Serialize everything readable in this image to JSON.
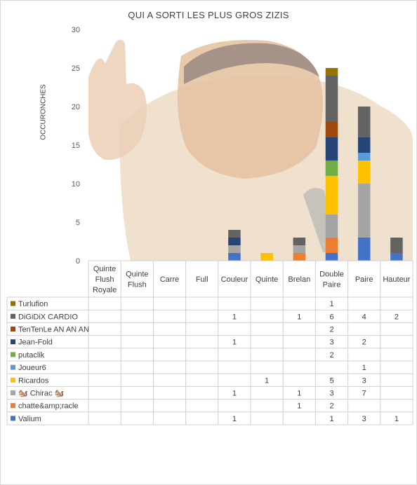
{
  "chart_data": {
    "type": "bar",
    "stacked": true,
    "title": "QUI A SORTI LES PLUS GROS ZIZIS",
    "ylabel": "OCCURONCHES",
    "ylim": [
      0,
      30
    ],
    "yticks": [
      0,
      5,
      10,
      15,
      20,
      25,
      30
    ],
    "grid": false,
    "legend": "data-table",
    "background": "photo-of-laughing-man",
    "categories": [
      [
        "Quinte",
        "Flush",
        "Royale"
      ],
      [
        "Quinte",
        "Flush"
      ],
      [
        "Carre"
      ],
      [
        "Full"
      ],
      [
        "Couleur"
      ],
      [
        "Quinte"
      ],
      [
        "Brelan"
      ],
      [
        "Double",
        "Paire"
      ],
      [
        "Paire"
      ],
      [
        "Hauteur"
      ]
    ],
    "series": [
      {
        "name": "Valium",
        "color": "#4472c4",
        "values": [
          null,
          null,
          null,
          null,
          1,
          null,
          null,
          1,
          3,
          1
        ]
      },
      {
        "name": "chatte&amp;racle",
        "color": "#ed7d31",
        "values": [
          null,
          null,
          null,
          null,
          null,
          null,
          1,
          2,
          null,
          null
        ]
      },
      {
        "name": "🐿️ Chirac 🐿️",
        "color": "#a5a5a5",
        "values": [
          null,
          null,
          null,
          null,
          1,
          null,
          1,
          3,
          7,
          null
        ]
      },
      {
        "name": "Ricardos",
        "color": "#ffc000",
        "values": [
          null,
          null,
          null,
          null,
          null,
          1,
          null,
          5,
          3,
          null
        ]
      },
      {
        "name": "Joueur6",
        "color": "#5b9bd5",
        "values": [
          null,
          null,
          null,
          null,
          null,
          null,
          null,
          null,
          1,
          null
        ]
      },
      {
        "name": "putaclik",
        "color": "#70ad47",
        "values": [
          null,
          null,
          null,
          null,
          null,
          null,
          null,
          2,
          null,
          null
        ]
      },
      {
        "name": "Jean-Fold",
        "color": "#264478",
        "values": [
          null,
          null,
          null,
          null,
          1,
          null,
          null,
          3,
          2,
          null
        ]
      },
      {
        "name": "TenTenLe AN AN AN",
        "color": "#9e480e",
        "values": [
          null,
          null,
          null,
          null,
          null,
          null,
          null,
          2,
          null,
          null
        ]
      },
      {
        "name": "DiGiDiX CARDIO",
        "color": "#636363",
        "values": [
          null,
          null,
          null,
          null,
          1,
          null,
          1,
          6,
          4,
          2
        ]
      },
      {
        "name": "Turlufion",
        "color": "#997300",
        "values": [
          null,
          null,
          null,
          null,
          null,
          null,
          null,
          1,
          null,
          null
        ]
      }
    ]
  }
}
